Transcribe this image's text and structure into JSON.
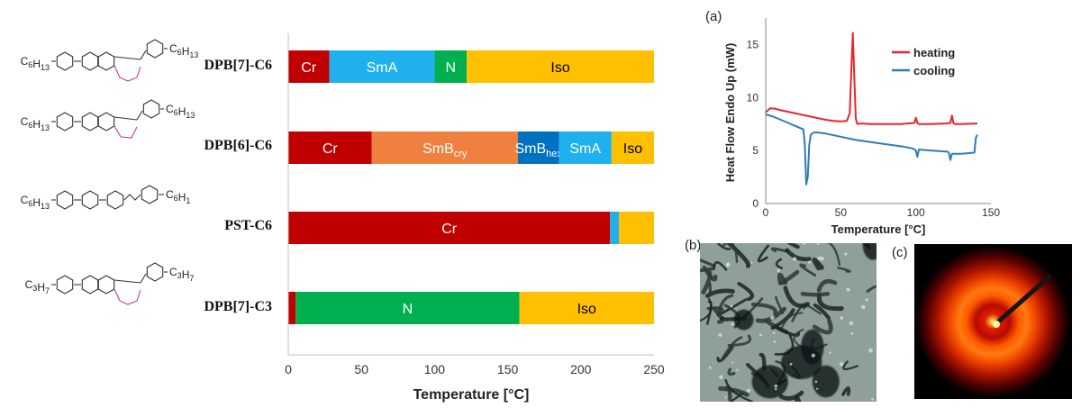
{
  "molecules": [
    {
      "name": "DPB[7]-C6",
      "sub_left": "C6H13",
      "sub_right": "C6H13",
      "core": "dpb7"
    },
    {
      "name": "DPB[6]-C6",
      "sub_left": "C6H13",
      "sub_right": "C6H13",
      "core": "dpb6"
    },
    {
      "name": "PST-C6",
      "sub_left": "C6H13",
      "sub_right": "C6H1",
      "core": "pst"
    },
    {
      "name": "DPB[7]-C3",
      "sub_left": "C3H7",
      "sub_right": "C3H7",
      "core": "dpb7"
    }
  ],
  "chart_data": [
    {
      "type": "bar",
      "subtype": "stacked-horizontal",
      "xlabel": "Temperature [°C]",
      "xlim": [
        0,
        250
      ],
      "xticks": [
        0,
        50,
        100,
        150,
        200,
        250
      ],
      "categories": [
        "DPB[7]-C6",
        "DPB[6]-C6",
        "PST-C6",
        "DPB[7]-C3"
      ],
      "colors": {
        "Cr": "#c00000",
        "SmA": "#20b0ee",
        "N": "#00b050",
        "Iso": "#ffc000",
        "SmBcry": "#f08040",
        "SmBhex": "#0070c0"
      },
      "bars": [
        [
          {
            "phase": "Cr",
            "label": "Cr",
            "start": 0,
            "end": 28
          },
          {
            "phase": "SmA",
            "label": "SmA",
            "start": 28,
            "end": 100
          },
          {
            "phase": "N",
            "label": "N",
            "start": 100,
            "end": 122
          },
          {
            "phase": "Iso",
            "label": "Iso",
            "start": 122,
            "end": 250
          }
        ],
        [
          {
            "phase": "Cr",
            "label": "Cr",
            "start": 0,
            "end": 57
          },
          {
            "phase": "SmBcry",
            "label": "SmB",
            "label_sub": "cry",
            "start": 57,
            "end": 157
          },
          {
            "phase": "SmBhex",
            "label": "SmB",
            "label_sub": "hex",
            "start": 157,
            "end": 185
          },
          {
            "phase": "SmA",
            "label": "SmA",
            "start": 185,
            "end": 221
          },
          {
            "phase": "Iso",
            "label": "Iso",
            "start": 221,
            "end": 250
          }
        ],
        [
          {
            "phase": "Cr",
            "label": "Cr",
            "start": 0,
            "end": 220
          },
          {
            "phase": "SmA",
            "label": "",
            "start": 220,
            "end": 226
          },
          {
            "phase": "Iso",
            "label": "",
            "start": 226,
            "end": 250
          }
        ],
        [
          {
            "phase": "Cr",
            "label": "",
            "start": 0,
            "end": 5
          },
          {
            "phase": "N",
            "label": "N",
            "start": 5,
            "end": 158
          },
          {
            "phase": "Iso",
            "label": "Iso",
            "start": 158,
            "end": 250
          }
        ]
      ]
    },
    {
      "type": "line",
      "panel_label": "(a)",
      "xlabel": "Temperature [°C]",
      "ylabel": "Heat Flow Endo Up (mW)",
      "xlim": [
        0,
        150
      ],
      "ylim": [
        0,
        17.5
      ],
      "xticks": [
        0,
        50,
        100,
        150
      ],
      "yticks": [
        0,
        5,
        10,
        15
      ],
      "legend_position": "top-right",
      "series": [
        {
          "name": "heating",
          "color": "#e8262d",
          "x": [
            0,
            3,
            6,
            10,
            20,
            30,
            40,
            45,
            50,
            54,
            56,
            57,
            58,
            59,
            60,
            61,
            63,
            70,
            80,
            90,
            99,
            100,
            101,
            102,
            110,
            120,
            123,
            124,
            125,
            126,
            130,
            141
          ],
          "y": [
            8.6,
            9.0,
            8.95,
            8.8,
            8.5,
            8.2,
            7.9,
            7.8,
            7.75,
            7.8,
            8.5,
            12.5,
            16.1,
            12.0,
            8.0,
            7.5,
            7.55,
            7.5,
            7.5,
            7.5,
            7.6,
            8.1,
            7.6,
            7.5,
            7.5,
            7.55,
            7.6,
            8.3,
            7.6,
            7.5,
            7.5,
            7.55
          ]
        },
        {
          "name": "cooling",
          "color": "#2e7db5",
          "x": [
            141,
            140,
            139,
            130,
            124,
            123,
            122,
            121,
            120,
            110,
            102,
            101,
            100,
            99,
            98,
            90,
            80,
            60,
            50,
            40,
            35,
            32,
            30,
            29,
            28,
            27,
            26,
            25,
            20,
            15,
            10,
            5,
            0
          ],
          "y": [
            6.5,
            6.2,
            4.8,
            4.7,
            4.7,
            4.1,
            4.8,
            4.9,
            4.9,
            5.0,
            5.1,
            4.4,
            5.0,
            5.1,
            5.2,
            5.4,
            5.6,
            6.0,
            6.3,
            6.6,
            6.7,
            6.7,
            6.5,
            5.5,
            2.5,
            1.8,
            5.8,
            7.0,
            7.3,
            7.6,
            7.9,
            8.2,
            8.4
          ]
        }
      ]
    }
  ],
  "panel_b_label": "(b)",
  "panel_c_label": "(c)"
}
